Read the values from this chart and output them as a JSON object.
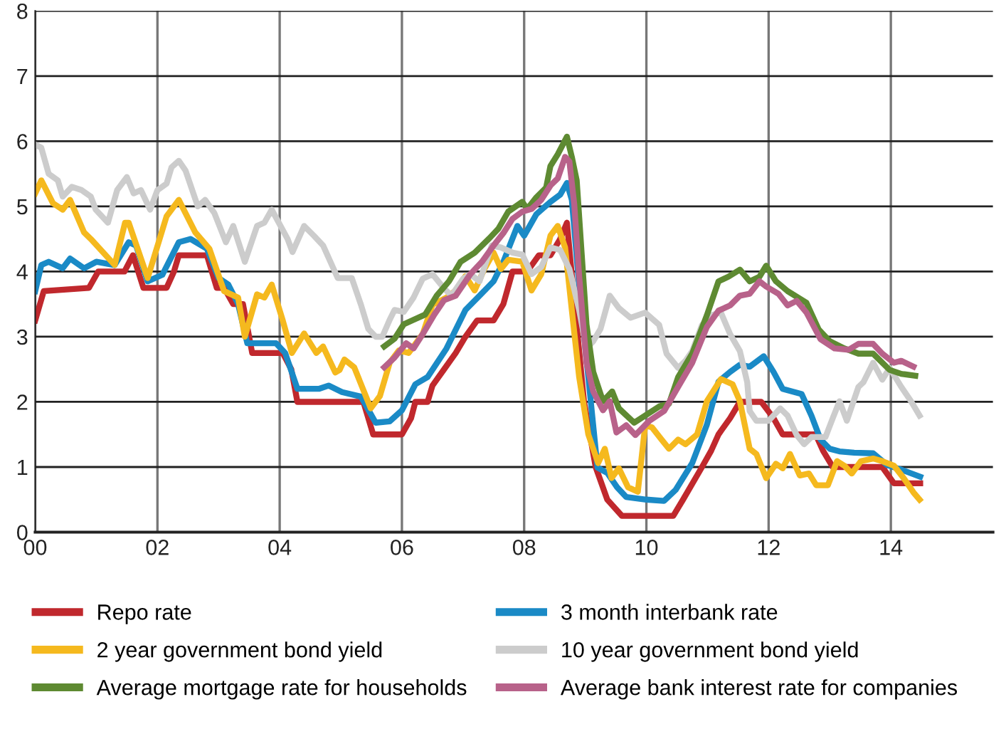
{
  "chart_data": {
    "type": "line",
    "xlim": [
      0,
      15.67
    ],
    "ylim": [
      0,
      8
    ],
    "xticks": [
      {
        "value": 0,
        "label": "00"
      },
      {
        "value": 2,
        "label": "02"
      },
      {
        "value": 4,
        "label": "04"
      },
      {
        "value": 6,
        "label": "06"
      },
      {
        "value": 8,
        "label": "08"
      },
      {
        "value": 10,
        "label": "10"
      },
      {
        "value": 12,
        "label": "12"
      },
      {
        "value": 14,
        "label": "14"
      }
    ],
    "yticks": [
      0,
      1,
      2,
      3,
      4,
      5,
      6,
      7,
      8
    ],
    "grid": true,
    "legend": "bottom",
    "marker": "none",
    "line_style": "solid",
    "series": [
      {
        "name": "Repo rate",
        "color": "#c0282d",
        "x": [
          0,
          0.14,
          0.88,
          1.03,
          1.46,
          1.6,
          1.77,
          2.15,
          2.27,
          2.35,
          2.81,
          2.97,
          3.09,
          3.24,
          3.4,
          3.55,
          4.05,
          4.19,
          4.29,
          5.37,
          5.45,
          5.53,
          6.0,
          6.15,
          6.22,
          6.42,
          6.5,
          6.69,
          6.88,
          7.04,
          7.23,
          7.5,
          7.66,
          7.81,
          8.05,
          8.24,
          8.43,
          8.59,
          8.7,
          8.8,
          8.98,
          9.17,
          9.36,
          9.6,
          10.44,
          10.6,
          10.91,
          11.06,
          11.18,
          11.37,
          11.53,
          11.88,
          12.08,
          12.23,
          12.77,
          12.89,
          13.05,
          13.86,
          14.05,
          14.48
        ],
        "values": [
          3.25,
          3.7,
          3.75,
          4.0,
          4.0,
          4.25,
          3.75,
          3.75,
          4.0,
          4.25,
          4.25,
          3.75,
          3.75,
          3.5,
          3.5,
          2.75,
          2.75,
          2.5,
          2.0,
          2.0,
          1.75,
          1.5,
          1.5,
          1.75,
          2.0,
          2.0,
          2.25,
          2.5,
          2.75,
          3.0,
          3.25,
          3.25,
          3.5,
          4.0,
          4.0,
          4.25,
          4.25,
          4.5,
          4.75,
          3.75,
          2.0,
          1.0,
          0.5,
          0.25,
          0.25,
          0.5,
          1.0,
          1.25,
          1.5,
          1.75,
          2.0,
          2.0,
          1.75,
          1.5,
          1.5,
          1.25,
          1.0,
          1.0,
          0.75,
          0.75
        ]
      },
      {
        "name": "3 month interbank rate",
        "color": "#1a8ac6",
        "x": [
          0,
          0.1,
          0.22,
          0.45,
          0.57,
          0.8,
          1.0,
          1.3,
          1.53,
          1.65,
          1.84,
          2.08,
          2.35,
          2.54,
          2.81,
          3.0,
          3.16,
          3.32,
          3.47,
          3.94,
          4.09,
          4.29,
          4.64,
          4.8,
          5.02,
          5.33,
          5.57,
          5.8,
          6.0,
          6.22,
          6.42,
          6.73,
          7.04,
          7.27,
          7.5,
          7.66,
          7.89,
          8.0,
          8.2,
          8.43,
          8.59,
          8.7,
          8.78,
          8.9,
          9.05,
          9.2,
          9.36,
          9.52,
          9.67,
          10.0,
          10.29,
          10.48,
          10.75,
          10.99,
          11.18,
          11.37,
          11.53,
          11.69,
          11.92,
          12.08,
          12.23,
          12.54,
          12.7,
          12.85,
          13.0,
          13.16,
          13.4,
          13.71,
          13.94,
          14.17,
          14.48
        ],
        "values": [
          3.7,
          4.1,
          4.15,
          4.05,
          4.2,
          4.05,
          4.15,
          4.1,
          4.45,
          4.4,
          3.85,
          3.95,
          4.45,
          4.5,
          4.35,
          3.9,
          3.8,
          3.5,
          2.9,
          2.9,
          2.75,
          2.2,
          2.2,
          2.25,
          2.15,
          2.08,
          1.68,
          1.7,
          1.87,
          2.27,
          2.38,
          2.82,
          3.41,
          3.63,
          3.85,
          4.15,
          4.7,
          4.55,
          4.88,
          5.07,
          5.18,
          5.36,
          5.1,
          3.78,
          2.38,
          0.99,
          0.91,
          0.69,
          0.54,
          0.5,
          0.48,
          0.65,
          1.06,
          1.65,
          2.31,
          2.46,
          2.57,
          2.54,
          2.7,
          2.46,
          2.2,
          2.12,
          1.79,
          1.42,
          1.28,
          1.24,
          1.22,
          1.21,
          1.03,
          0.96,
          0.85
        ]
      },
      {
        "name": "2 year government bond yield",
        "color": "#f5b91e",
        "x": [
          0,
          0.1,
          0.29,
          0.45,
          0.57,
          0.8,
          0.91,
          1.3,
          1.47,
          1.53,
          1.84,
          2.15,
          2.35,
          2.62,
          2.85,
          3.09,
          3.32,
          3.43,
          3.63,
          3.75,
          3.87,
          4.05,
          4.2,
          4.4,
          4.6,
          4.71,
          4.91,
          4.98,
          5.06,
          5.22,
          5.49,
          5.64,
          5.8,
          5.95,
          6.11,
          6.34,
          6.5,
          6.73,
          6.88,
          7.04,
          7.19,
          7.35,
          7.5,
          7.62,
          7.74,
          7.97,
          8.12,
          8.28,
          8.43,
          8.55,
          8.67,
          8.78,
          8.9,
          9.05,
          9.21,
          9.32,
          9.43,
          9.55,
          9.7,
          9.86,
          9.98,
          10.09,
          10.25,
          10.37,
          10.52,
          10.64,
          10.83,
          10.99,
          11.22,
          11.41,
          11.53,
          11.69,
          11.8,
          11.96,
          12.12,
          12.23,
          12.35,
          12.51,
          12.66,
          12.78,
          12.97,
          13.12,
          13.24,
          13.36,
          13.51,
          13.71,
          13.86,
          14.05,
          14.21,
          14.37,
          14.47
        ],
        "values": [
          5.2,
          5.4,
          5.05,
          4.95,
          5.1,
          4.6,
          4.5,
          4.1,
          4.75,
          4.75,
          3.9,
          4.85,
          5.1,
          4.6,
          4.35,
          3.7,
          3.6,
          3.0,
          3.65,
          3.6,
          3.8,
          3.25,
          2.75,
          3.05,
          2.75,
          2.85,
          2.45,
          2.49,
          2.65,
          2.53,
          1.9,
          2.09,
          2.6,
          2.79,
          2.75,
          3.04,
          3.49,
          3.6,
          3.71,
          3.93,
          3.71,
          4.04,
          4.29,
          4.04,
          4.18,
          4.15,
          3.71,
          3.96,
          4.55,
          4.7,
          4.37,
          3.41,
          2.38,
          1.5,
          1.06,
          1.28,
          0.83,
          0.98,
          0.69,
          0.62,
          1.64,
          1.61,
          1.42,
          1.28,
          1.42,
          1.35,
          1.5,
          2.01,
          2.35,
          2.27,
          2.01,
          1.28,
          1.2,
          0.83,
          1.05,
          0.98,
          1.2,
          0.87,
          0.9,
          0.72,
          0.72,
          1.09,
          1.02,
          0.9,
          1.09,
          1.13,
          1.09,
          1.02,
          0.83,
          0.61,
          0.5
        ]
      },
      {
        "name": "10 year government bond yield",
        "color": "#cccccc",
        "x": [
          0,
          0.1,
          0.22,
          0.37,
          0.45,
          0.6,
          0.76,
          0.91,
          0.99,
          1.19,
          1.34,
          1.5,
          1.61,
          1.73,
          1.88,
          2.0,
          2.15,
          2.23,
          2.35,
          2.46,
          2.66,
          2.78,
          2.93,
          3.12,
          3.24,
          3.43,
          3.63,
          3.75,
          3.87,
          4.13,
          4.21,
          4.4,
          4.56,
          4.71,
          4.95,
          5.18,
          5.33,
          5.45,
          5.57,
          5.68,
          5.8,
          5.88,
          6.03,
          6.19,
          6.34,
          6.5,
          6.69,
          6.81,
          7.0,
          7.12,
          7.27,
          7.47,
          7.62,
          7.81,
          7.97,
          8.12,
          8.28,
          8.43,
          8.59,
          8.74,
          8.9,
          9.02,
          9.13,
          9.25,
          9.4,
          9.55,
          9.74,
          9.98,
          10.21,
          10.33,
          10.52,
          10.64,
          10.75,
          10.91,
          11.06,
          11.22,
          11.37,
          11.53,
          11.65,
          11.69,
          11.8,
          12.0,
          12.19,
          12.31,
          12.46,
          12.58,
          12.7,
          12.93,
          13.05,
          13.16,
          13.28,
          13.47,
          13.55,
          13.71,
          13.86,
          13.98,
          14.17,
          14.33,
          14.47
        ],
        "values": [
          5.95,
          5.9,
          5.5,
          5.4,
          5.15,
          5.3,
          5.25,
          5.15,
          4.95,
          4.75,
          5.25,
          5.45,
          5.2,
          5.25,
          4.95,
          5.25,
          5.35,
          5.6,
          5.7,
          5.55,
          5.0,
          5.1,
          4.9,
          4.45,
          4.7,
          4.15,
          4.7,
          4.75,
          4.95,
          4.5,
          4.3,
          4.7,
          4.55,
          4.4,
          3.9,
          3.9,
          3.49,
          3.12,
          3.0,
          3.0,
          3.26,
          3.41,
          3.38,
          3.6,
          3.89,
          3.96,
          3.74,
          3.63,
          3.89,
          3.96,
          3.85,
          4.4,
          4.37,
          4.29,
          4.26,
          3.96,
          4.07,
          4.37,
          4.33,
          4.04,
          3.41,
          2.82,
          2.93,
          3.12,
          3.63,
          3.44,
          3.29,
          3.37,
          3.18,
          2.74,
          2.52,
          2.63,
          2.78,
          3.18,
          3.33,
          3.37,
          3.04,
          2.78,
          2.3,
          1.86,
          1.71,
          1.71,
          1.9,
          1.79,
          1.49,
          1.35,
          1.46,
          1.46,
          1.75,
          2.01,
          1.71,
          2.23,
          2.3,
          2.6,
          2.34,
          2.52,
          2.23,
          2.01,
          1.79
        ]
      },
      {
        "name": "Average mortgage rate for households",
        "color": "#5e8a32",
        "x": [
          5.71,
          5.88,
          6.03,
          6.19,
          6.38,
          6.57,
          6.77,
          6.96,
          7.19,
          7.43,
          7.58,
          7.74,
          7.97,
          8.05,
          8.2,
          8.36,
          8.43,
          8.55,
          8.7,
          8.78,
          8.86,
          8.94,
          9.02,
          9.13,
          9.29,
          9.44,
          9.55,
          9.8,
          9.98,
          10.21,
          10.37,
          10.52,
          10.75,
          10.99,
          11.18,
          11.34,
          11.53,
          11.69,
          11.85,
          11.96,
          12.12,
          12.31,
          12.62,
          12.82,
          13.0,
          13.24,
          13.47,
          13.71,
          13.98,
          14.17,
          14.4
        ],
        "values": [
          2.85,
          2.97,
          3.19,
          3.26,
          3.34,
          3.63,
          3.85,
          4.15,
          4.29,
          4.51,
          4.66,
          4.92,
          5.07,
          4.96,
          5.14,
          5.29,
          5.62,
          5.8,
          6.07,
          5.76,
          5.4,
          4.29,
          3.19,
          2.46,
          2.01,
          2.16,
          1.9,
          1.68,
          1.79,
          1.93,
          1.97,
          2.38,
          2.74,
          3.33,
          3.85,
          3.92,
          4.03,
          3.85,
          3.92,
          4.09,
          3.85,
          3.7,
          3.52,
          3.11,
          2.93,
          2.82,
          2.74,
          2.74,
          2.49,
          2.43,
          2.4
        ]
      },
      {
        "name": "Average bank interest rate for companies",
        "color": "#b8628a",
        "x": [
          5.71,
          5.88,
          6.07,
          6.19,
          6.34,
          6.53,
          6.69,
          6.88,
          7.12,
          7.31,
          7.5,
          7.66,
          7.81,
          7.97,
          8.12,
          8.28,
          8.43,
          8.55,
          8.67,
          8.74,
          8.82,
          8.9,
          9.02,
          9.13,
          9.29,
          9.4,
          9.51,
          9.67,
          9.82,
          10.05,
          10.29,
          10.52,
          10.75,
          10.99,
          11.18,
          11.37,
          11.53,
          11.69,
          11.85,
          11.96,
          12.16,
          12.31,
          12.46,
          12.62,
          12.85,
          13.08,
          13.31,
          13.47,
          13.71,
          13.86,
          14.05,
          14.17,
          14.37
        ],
        "values": [
          2.53,
          2.68,
          2.9,
          2.82,
          3.04,
          3.34,
          3.56,
          3.63,
          3.96,
          4.15,
          4.4,
          4.59,
          4.81,
          4.92,
          4.96,
          5.1,
          5.32,
          5.43,
          5.76,
          5.69,
          5.03,
          3.93,
          2.6,
          2.16,
          1.87,
          2.01,
          1.53,
          1.64,
          1.49,
          1.71,
          1.86,
          2.23,
          2.6,
          3.15,
          3.4,
          3.48,
          3.63,
          3.66,
          3.85,
          3.77,
          3.66,
          3.48,
          3.55,
          3.37,
          2.96,
          2.82,
          2.8,
          2.89,
          2.89,
          2.74,
          2.6,
          2.63,
          2.54
        ]
      }
    ]
  }
}
